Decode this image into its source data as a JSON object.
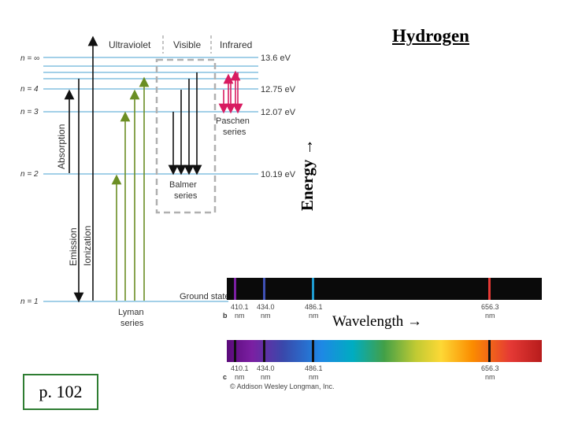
{
  "title": "Hydrogen",
  "energy_label": "Energy →",
  "wavelength_label": "Wavelength →",
  "page_ref": "p. 102",
  "regions": {
    "uv": "Ultraviolet",
    "visible": "Visible",
    "ir": "Infrared"
  },
  "levels": [
    {
      "n_label": "n = ∞",
      "energy": "13.6 eV"
    },
    {
      "n_label": "n = 4",
      "energy": "12.75 eV"
    },
    {
      "n_label": "n = 3",
      "energy": "12.07 eV"
    },
    {
      "n_label": "n = 2",
      "energy": "10.19 eV"
    },
    {
      "n_label": "n = 1",
      "energy": "Ground state"
    }
  ],
  "arrow_labels": {
    "absorption": "Absorption",
    "emission": "Emission",
    "ionization": "Ionization"
  },
  "series": {
    "paschen": [
      "Paschen",
      "series"
    ],
    "balmer": [
      "Balmer",
      "series"
    ],
    "lyman": [
      "Lyman",
      "series"
    ]
  },
  "spectra": {
    "b_marker": "b",
    "c_marker": "c",
    "lines": [
      {
        "value": "410.1",
        "unit": "nm"
      },
      {
        "value": "434.0",
        "unit": "nm"
      },
      {
        "value": "486.1",
        "unit": "nm"
      },
      {
        "value": "656.3",
        "unit": "nm"
      }
    ],
    "copyright": "© Addison Wesley Longman, Inc."
  },
  "colors": {
    "lyman": "#6b8e23",
    "paschen": "#d81b60",
    "level_line": "#6cb4d9",
    "visible_box": "#b0b0b0",
    "page_border": "#2e7d32"
  }
}
